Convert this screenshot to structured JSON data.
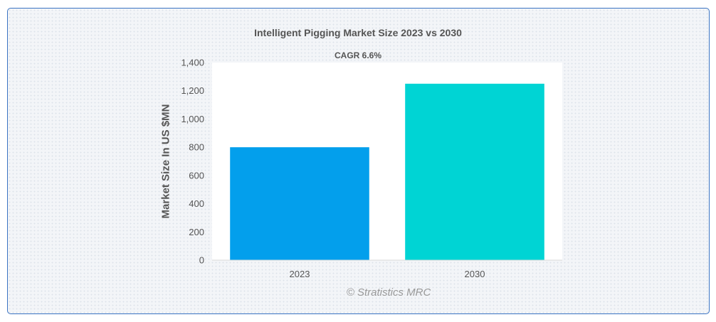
{
  "chart_data": {
    "type": "bar",
    "title": "Intelligent Pigging Market Size 2023 vs 2030",
    "subtitle": "CAGR 6.6%",
    "ylabel": "Market Size In US $MN",
    "xlabel": "",
    "categories": [
      "2023",
      "2030"
    ],
    "values": [
      800,
      1250
    ],
    "bar_colors": [
      "#039fec",
      "#00d4d4"
    ],
    "ylim": [
      0,
      1400
    ],
    "yticks": [
      0,
      200,
      400,
      600,
      800,
      1000,
      1200,
      1400
    ],
    "ytick_labels": [
      "0",
      "200",
      "400",
      "600",
      "800",
      "1,000",
      "1,200",
      "1,400"
    ],
    "grid": false,
    "legend": "none"
  },
  "watermark": "© Stratistics MRC",
  "colors": {
    "frame_border": "#3a73c2",
    "text": "#555555",
    "watermark": "#999999"
  }
}
